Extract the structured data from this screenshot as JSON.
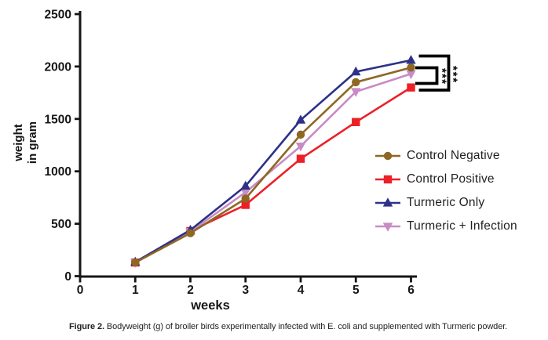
{
  "figure": {
    "caption_label": "Figure 2.",
    "caption_text": " Bodyweight (g) of broiler birds experimentally infected with E. coli and supplemented with Turmeric powder."
  },
  "chart_data": {
    "type": "line",
    "title": "",
    "xlabel": "weeks",
    "ylabel": "weight in gram",
    "ylabel_lines": [
      "weight",
      "in gram"
    ],
    "x": [
      1,
      2,
      3,
      4,
      5,
      6
    ],
    "xticks": [
      0,
      1,
      2,
      3,
      4,
      5,
      6
    ],
    "yticks": [
      0,
      500,
      1000,
      1500,
      2000,
      2500
    ],
    "xlim": [
      0,
      6
    ],
    "ylim": [
      0,
      2500
    ],
    "grid": false,
    "legend_position": "right-middle",
    "series": [
      {
        "name": "Control Negative",
        "color": "#8e6723",
        "marker": "circle",
        "values": [
          130,
          410,
          740,
          1350,
          1850,
          1990
        ]
      },
      {
        "name": "Control Positive",
        "color": "#ec2027",
        "marker": "square",
        "values": [
          130,
          430,
          680,
          1120,
          1470,
          1800
        ]
      },
      {
        "name": "Turmeric Only",
        "color": "#2d3189",
        "marker": "triangle-up",
        "values": [
          135,
          440,
          860,
          1490,
          1950,
          2060
        ]
      },
      {
        "name": "Turmeric + Infection",
        "color": "#c88bc4",
        "marker": "triangle-down",
        "values": [
          130,
          425,
          800,
          1240,
          1760,
          1930
        ]
      }
    ],
    "annotations": [
      {
        "type": "significance-bracket",
        "label": "***",
        "compares": [
          "Control Negative",
          "Control Positive"
        ]
      },
      {
        "type": "significance-bracket",
        "label": "***",
        "compares": [
          "Turmeric Only",
          "Control Positive"
        ]
      }
    ],
    "axis_color": "#161616"
  }
}
